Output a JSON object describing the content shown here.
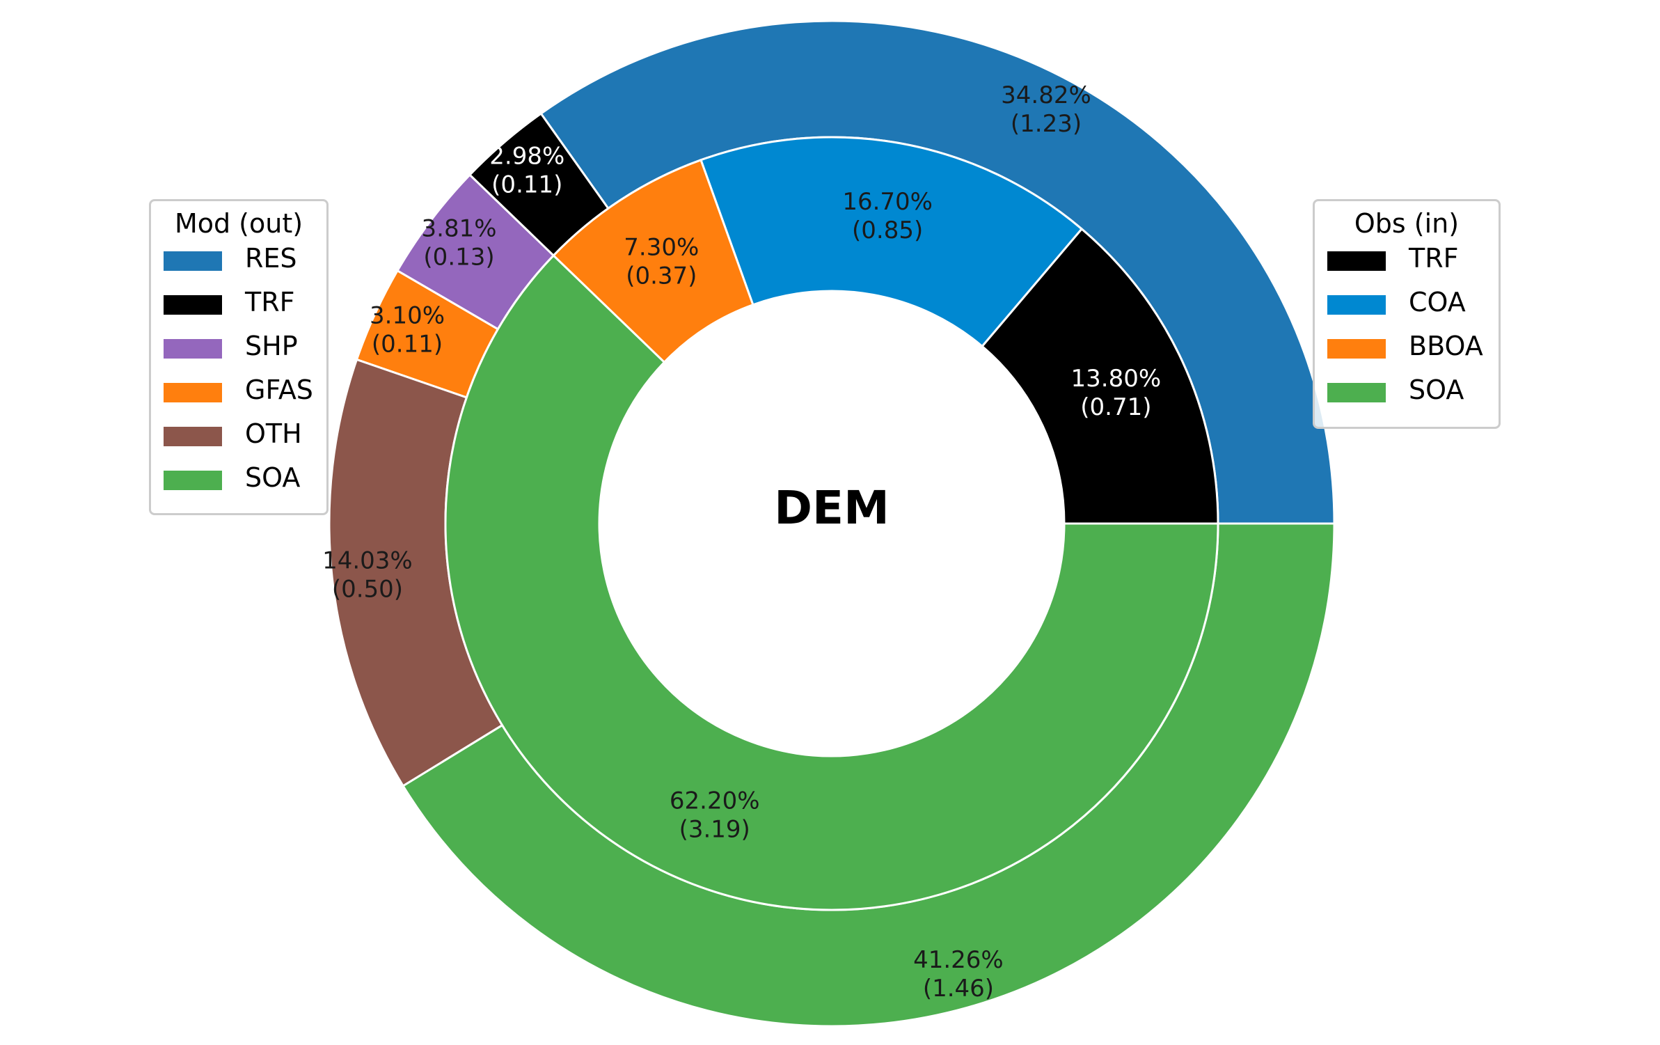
{
  "chart_data": {
    "type": "pie",
    "center_label": "DEM",
    "outer_ring": {
      "legend_title": "Mod (out)",
      "slices": [
        {
          "label": "RES",
          "percent": "34.82%",
          "value": "(1.23)",
          "color": "#1f77b4",
          "text_color": "#1a1a1a"
        },
        {
          "label": "TRF",
          "percent": "2.98%",
          "value": "(0.11)",
          "color": "#000000",
          "text_color": "#ffffff"
        },
        {
          "label": "SHP",
          "percent": "3.81%",
          "value": "(0.13)",
          "color": "#9467bd",
          "text_color": "#1a1a1a"
        },
        {
          "label": "GFAS",
          "percent": "3.10%",
          "value": "(0.11)",
          "color": "#ff7f0e",
          "text_color": "#1a1a1a"
        },
        {
          "label": "OTH",
          "percent": "14.03%",
          "value": "(0.50)",
          "color": "#8c564b",
          "text_color": "#1a1a1a"
        },
        {
          "label": "SOA",
          "percent": "41.26%",
          "value": "(1.46)",
          "color": "#4daf4f",
          "text_color": "#1a1a1a"
        }
      ],
      "values": [
        34.82,
        2.98,
        3.81,
        3.1,
        14.03,
        41.26
      ]
    },
    "inner_ring": {
      "legend_title": "Obs (in)",
      "slices": [
        {
          "label": "TRF",
          "percent": "13.80%",
          "value": "(0.71)",
          "color": "#000000",
          "text_color": "#ffffff"
        },
        {
          "label": "COA",
          "percent": "16.70%",
          "value": "(0.85)",
          "color": "#0088d1",
          "text_color": "#1a1a1a"
        },
        {
          "label": "BBOA",
          "percent": "7.30%",
          "value": "(0.37)",
          "color": "#ff7f0e",
          "text_color": "#1a1a1a"
        },
        {
          "label": "SOA",
          "percent": "62.20%",
          "value": "(3.19)",
          "color": "#4daf4f",
          "text_color": "#1a1a1a"
        }
      ],
      "values": [
        13.8,
        16.7,
        7.3,
        62.2
      ]
    }
  }
}
